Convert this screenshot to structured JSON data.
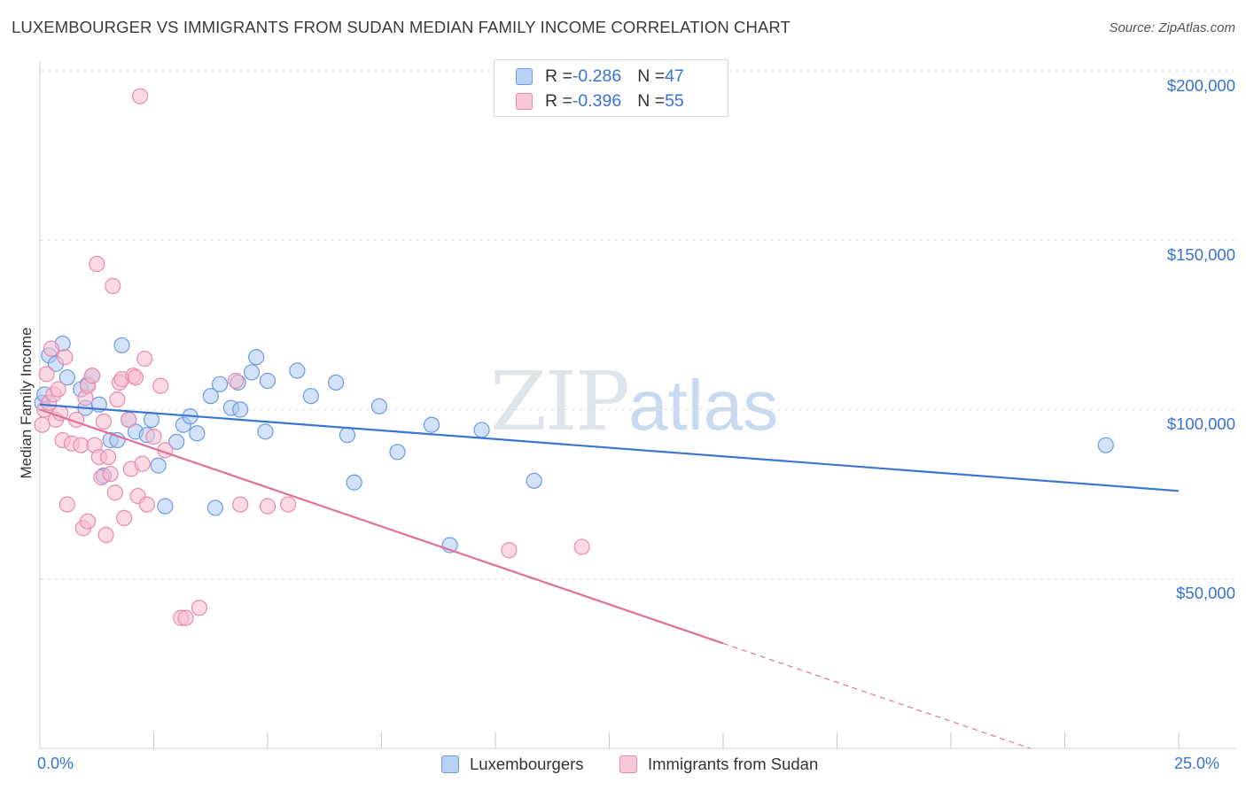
{
  "header": {
    "title": "LUXEMBOURGER VS IMMIGRANTS FROM SUDAN MEDIAN FAMILY INCOME CORRELATION CHART",
    "source": "Source: ZipAtlas.com"
  },
  "watermark": {
    "zip": "ZIP",
    "atlas": "atlas"
  },
  "legend": {
    "rows": [
      {
        "r_label": "R = ",
        "r_value": "-0.286",
        "n_label": "N = ",
        "n_value": "47"
      },
      {
        "r_label": "R = ",
        "r_value": "-0.396",
        "n_label": "N = ",
        "n_value": "55"
      }
    ]
  },
  "bottom_legend": {
    "lux": "Luxembourgers",
    "sudan": "Immigrants from Sudan"
  },
  "axis": {
    "ylabel": "Median Family Income",
    "xmin_label": "0.0%",
    "xmax_label": "25.0%",
    "y_ticks": [
      "$200,000",
      "$150,000",
      "$100,000",
      "$50,000"
    ]
  },
  "colors": {
    "lux_fill": "#aecbf2",
    "lux_stroke": "#6c9be0",
    "lux_line": "#3a76d0",
    "sudan_fill": "#f7bcd0",
    "sudan_stroke": "#e98aa9",
    "sudan_line": "#e0709a",
    "tick_text": "#3a72d2",
    "grid": "#dcdcdc"
  },
  "chart_data": {
    "type": "scatter",
    "title": "LUXEMBOURGER VS IMMIGRANTS FROM SUDAN MEDIAN FAMILY INCOME CORRELATION CHART",
    "xlabel": "",
    "ylabel": "Median Family Income",
    "xlim": [
      0,
      25
    ],
    "ylim": [
      0,
      205000
    ],
    "y_ticks": [
      50000,
      100000,
      150000,
      200000
    ],
    "grid": true,
    "legend_placement": "top-center",
    "series": [
      {
        "name": "Luxembourgers",
        "R": -0.286,
        "N": 47,
        "trend": {
          "x": [
            0,
            25
          ],
          "y": [
            101500,
            76000
          ]
        },
        "points": [
          [
            0.05,
            102000
          ],
          [
            0.1,
            104500
          ],
          [
            0.2,
            116000
          ],
          [
            0.35,
            113500
          ],
          [
            0.5,
            119500
          ],
          [
            0.6,
            109500
          ],
          [
            0.9,
            106000
          ],
          [
            1.05,
            107500
          ],
          [
            1.0,
            100500
          ],
          [
            1.15,
            110000
          ],
          [
            1.3,
            101500
          ],
          [
            1.4,
            80500
          ],
          [
            1.55,
            91000
          ],
          [
            1.7,
            91000
          ],
          [
            1.8,
            119000
          ],
          [
            1.95,
            97000
          ],
          [
            2.1,
            93500
          ],
          [
            2.35,
            92500
          ],
          [
            2.45,
            97000
          ],
          [
            2.6,
            83500
          ],
          [
            2.75,
            71500
          ],
          [
            3.0,
            90500
          ],
          [
            3.15,
            95500
          ],
          [
            3.3,
            98000
          ],
          [
            3.45,
            93000
          ],
          [
            3.75,
            104000
          ],
          [
            3.85,
            71000
          ],
          [
            3.95,
            107500
          ],
          [
            4.2,
            100500
          ],
          [
            4.35,
            108000
          ],
          [
            4.4,
            100000
          ],
          [
            4.65,
            111000
          ],
          [
            4.75,
            115500
          ],
          [
            4.95,
            93500
          ],
          [
            5.0,
            108500
          ],
          [
            5.65,
            111500
          ],
          [
            5.95,
            104000
          ],
          [
            6.5,
            108000
          ],
          [
            6.75,
            92500
          ],
          [
            6.9,
            78500
          ],
          [
            7.45,
            101000
          ],
          [
            7.85,
            87500
          ],
          [
            8.6,
            95500
          ],
          [
            9.0,
            60000
          ],
          [
            9.7,
            94000
          ],
          [
            10.85,
            79000
          ],
          [
            23.4,
            89500
          ]
        ]
      },
      {
        "name": "Immigrants from Sudan",
        "R": -0.396,
        "N": 55,
        "trend": {
          "x": [
            0,
            15
          ],
          "y": [
            100000,
            31000
          ],
          "dashed_x": [
            15,
            25
          ],
          "dashed_y": [
            31000,
            -15000
          ]
        },
        "points": [
          [
            0.05,
            95500
          ],
          [
            0.1,
            100000
          ],
          [
            0.15,
            110500
          ],
          [
            0.2,
            102000
          ],
          [
            0.3,
            104500
          ],
          [
            0.35,
            97000
          ],
          [
            0.4,
            106000
          ],
          [
            0.45,
            99000
          ],
          [
            0.5,
            91000
          ],
          [
            0.55,
            115500
          ],
          [
            0.6,
            72000
          ],
          [
            0.7,
            90000
          ],
          [
            0.8,
            97000
          ],
          [
            0.9,
            89500
          ],
          [
            0.95,
            65000
          ],
          [
            1.0,
            103500
          ],
          [
            1.05,
            67000
          ],
          [
            1.05,
            107000
          ],
          [
            1.15,
            110000
          ],
          [
            1.2,
            89500
          ],
          [
            1.25,
            143000
          ],
          [
            1.3,
            86000
          ],
          [
            1.35,
            80000
          ],
          [
            1.4,
            96500
          ],
          [
            1.45,
            63000
          ],
          [
            1.5,
            86000
          ],
          [
            1.55,
            81000
          ],
          [
            1.6,
            136500
          ],
          [
            1.65,
            75500
          ],
          [
            1.7,
            103000
          ],
          [
            1.75,
            108000
          ],
          [
            1.8,
            109000
          ],
          [
            1.85,
            68000
          ],
          [
            1.95,
            97000
          ],
          [
            2.0,
            82500
          ],
          [
            2.05,
            110000
          ],
          [
            2.1,
            109500
          ],
          [
            2.15,
            74500
          ],
          [
            2.2,
            192500
          ],
          [
            2.25,
            84000
          ],
          [
            2.3,
            115000
          ],
          [
            2.35,
            72000
          ],
          [
            2.5,
            92000
          ],
          [
            2.65,
            107000
          ],
          [
            2.75,
            88000
          ],
          [
            3.1,
            38500
          ],
          [
            3.2,
            38500
          ],
          [
            3.5,
            41500
          ],
          [
            4.3,
            108500
          ],
          [
            4.4,
            72000
          ],
          [
            5.0,
            71500
          ],
          [
            5.45,
            72000
          ],
          [
            10.3,
            58500
          ],
          [
            11.9,
            59500
          ],
          [
            0.25,
            118000
          ]
        ]
      }
    ]
  }
}
